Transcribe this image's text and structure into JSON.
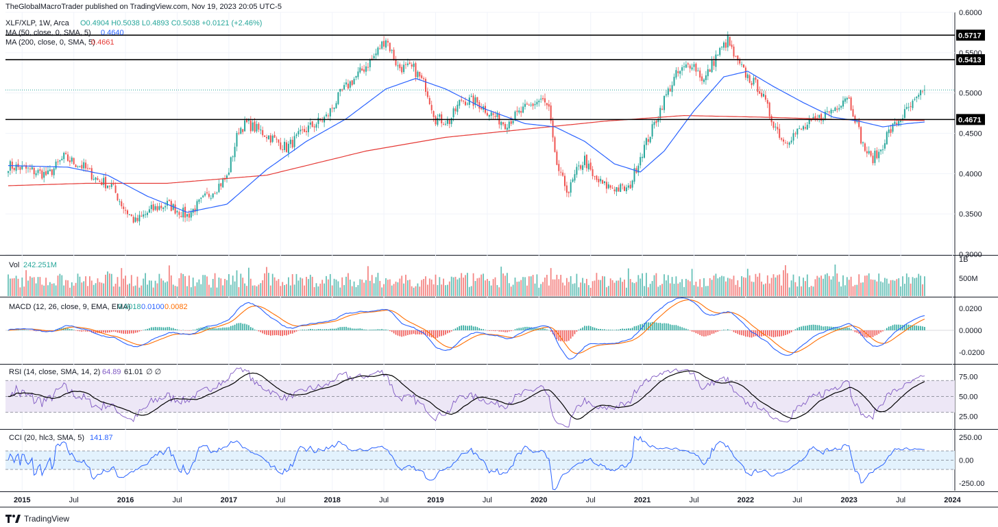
{
  "header": {
    "published": "TheGlobalMacroTrader published on TradingView.com, Nov 19, 2023 20:05 UTC-5"
  },
  "footer": {
    "brand": "TradingView",
    "logo": "tradingview-logo-icon"
  },
  "colors": {
    "up": "#26a69a",
    "down": "#ef5350",
    "ma50": "#2962ff",
    "ma200": "#e53935",
    "macd": "#2962ff",
    "signal": "#ff6d00",
    "rsi": "#7e57c2",
    "rsi_ma": "#000000",
    "cci": "#2962ff",
    "rsi_band": "#ede7f6",
    "cci_band": "#e3f2fd"
  },
  "chart_data": [
    {
      "id": "price",
      "type": "candlestick",
      "legend": {
        "symbol": "XLF/XLP, 1W, Arca",
        "ohlc": "O0.4904 H0.5038 L0.4893 C0.5038 +0.0121 (+2.46%)",
        "ma50_label": "MA (50, close, 0, SMA, 5)",
        "ma50_value": "0.4640",
        "ma200_label": "MA (200, close, 0, SMA, 5)",
        "ma200_value": "0.4661"
      },
      "ylim": [
        0.3,
        0.6
      ],
      "y_ticks": [
        "0.6000",
        "0.5500",
        "0.5000",
        "0.4500",
        "0.4000",
        "0.3500",
        "0.3000"
      ],
      "last_close": 0.5038,
      "horizontal_lines": [
        {
          "value": 0.5717,
          "label": "0.5717"
        },
        {
          "value": 0.5413,
          "label": "0.5413"
        },
        {
          "value": 0.4671,
          "label": "0.4671"
        }
      ],
      "anchors": [
        [
          0,
          0.41
        ],
        [
          10,
          0.405
        ],
        [
          20,
          0.398
        ],
        [
          28,
          0.42
        ],
        [
          38,
          0.408
        ],
        [
          45,
          0.392
        ],
        [
          52,
          0.385
        ],
        [
          58,
          0.358
        ],
        [
          64,
          0.34
        ],
        [
          72,
          0.355
        ],
        [
          80,
          0.362
        ],
        [
          90,
          0.348
        ],
        [
          100,
          0.372
        ],
        [
          110,
          0.395
        ],
        [
          116,
          0.455
        ],
        [
          120,
          0.462
        ],
        [
          130,
          0.448
        ],
        [
          140,
          0.432
        ],
        [
          150,
          0.455
        ],
        [
          160,
          0.47
        ],
        [
          168,
          0.502
        ],
        [
          178,
          0.528
        ],
        [
          184,
          0.545
        ],
        [
          190,
          0.568
        ],
        [
          196,
          0.532
        ],
        [
          204,
          0.53
        ],
        [
          210,
          0.508
        ],
        [
          215,
          0.468
        ],
        [
          222,
          0.465
        ],
        [
          228,
          0.492
        ],
        [
          236,
          0.488
        ],
        [
          244,
          0.472
        ],
        [
          250,
          0.462
        ],
        [
          260,
          0.48
        ],
        [
          268,
          0.492
        ],
        [
          272,
          0.48
        ],
        [
          275,
          0.42
        ],
        [
          278,
          0.395
        ],
        [
          282,
          0.378
        ],
        [
          286,
          0.402
        ],
        [
          290,
          0.418
        ],
        [
          294,
          0.395
        ],
        [
          300,
          0.385
        ],
        [
          306,
          0.382
        ],
        [
          312,
          0.38
        ],
        [
          318,
          0.422
        ],
        [
          324,
          0.455
        ],
        [
          330,
          0.492
        ],
        [
          336,
          0.522
        ],
        [
          344,
          0.538
        ],
        [
          350,
          0.515
        ],
        [
          356,
          0.545
        ],
        [
          362,
          0.565
        ],
        [
          366,
          0.54
        ],
        [
          372,
          0.52
        ],
        [
          378,
          0.505
        ],
        [
          384,
          0.468
        ],
        [
          390,
          0.44
        ],
        [
          396,
          0.45
        ],
        [
          404,
          0.462
        ],
        [
          410,
          0.472
        ],
        [
          416,
          0.482
        ],
        [
          422,
          0.498
        ],
        [
          426,
          0.47
        ],
        [
          430,
          0.435
        ],
        [
          434,
          0.418
        ],
        [
          438,
          0.425
        ],
        [
          442,
          0.448
        ],
        [
          450,
          0.472
        ],
        [
          456,
          0.488
        ],
        [
          461,
          0.503
        ]
      ],
      "ma50_anchors": [
        [
          0,
          0.41
        ],
        [
          30,
          0.408
        ],
        [
          50,
          0.398
        ],
        [
          70,
          0.372
        ],
        [
          90,
          0.352
        ],
        [
          110,
          0.362
        ],
        [
          130,
          0.405
        ],
        [
          150,
          0.44
        ],
        [
          170,
          0.468
        ],
        [
          190,
          0.505
        ],
        [
          205,
          0.518
        ],
        [
          220,
          0.505
        ],
        [
          240,
          0.48
        ],
        [
          260,
          0.462
        ],
        [
          275,
          0.458
        ],
        [
          290,
          0.44
        ],
        [
          305,
          0.412
        ],
        [
          318,
          0.402
        ],
        [
          330,
          0.428
        ],
        [
          345,
          0.478
        ],
        [
          360,
          0.52
        ],
        [
          372,
          0.527
        ],
        [
          385,
          0.508
        ],
        [
          400,
          0.488
        ],
        [
          415,
          0.47
        ],
        [
          428,
          0.465
        ],
        [
          440,
          0.458
        ],
        [
          452,
          0.462
        ],
        [
          461,
          0.464
        ]
      ],
      "ma200_anchors": [
        [
          0,
          0.385
        ],
        [
          40,
          0.388
        ],
        [
          80,
          0.388
        ],
        [
          130,
          0.398
        ],
        [
          180,
          0.428
        ],
        [
          220,
          0.445
        ],
        [
          260,
          0.455
        ],
        [
          300,
          0.465
        ],
        [
          340,
          0.472
        ],
        [
          380,
          0.47
        ],
        [
          420,
          0.467
        ],
        [
          461,
          0.466
        ]
      ]
    },
    {
      "id": "volume",
      "type": "bar",
      "legend": {
        "label": "Vol",
        "value": "242.251M"
      },
      "y_ticks": [
        "1B",
        "500M"
      ]
    },
    {
      "id": "macd",
      "type": "line+histogram",
      "legend": {
        "label": "MACD (12, 26, close, 9, EMA, EMA)",
        "hist": "0.0018",
        "macd": "0.0100",
        "signal": "0.0082"
      },
      "ylim": [
        -0.03,
        0.03
      ],
      "y_ticks": [
        "0.0200",
        "0.0000",
        "-0.0200"
      ]
    },
    {
      "id": "rsi",
      "type": "line",
      "legend": {
        "label": "RSI (14, close, SMA, 14, 2)",
        "rsi": "64.89",
        "ma": "61.01",
        "extra": "∅ ∅"
      },
      "ylim": [
        10,
        90
      ],
      "bands": [
        30,
        50,
        70
      ],
      "y_ticks": [
        "75.00",
        "50.00",
        "25.00"
      ]
    },
    {
      "id": "cci",
      "type": "line",
      "legend": {
        "label": "CCI (20, hlc3, SMA, 5)",
        "value": "141.87"
      },
      "ylim": [
        -330,
        330
      ],
      "bands": [
        -100,
        0,
        100
      ],
      "y_ticks": [
        "250.00",
        "0.00",
        "-250.00"
      ]
    },
    {
      "id": "time_axis",
      "type": "axis",
      "x_ticks": [
        {
          "label": "2015",
          "week": 7,
          "bold": true
        },
        {
          "label": "Jul",
          "week": 33,
          "bold": false
        },
        {
          "label": "2016",
          "week": 59,
          "bold": true
        },
        {
          "label": "Jul",
          "week": 85,
          "bold": false
        },
        {
          "label": "2017",
          "week": 111,
          "bold": true
        },
        {
          "label": "Jul",
          "week": 137,
          "bold": false
        },
        {
          "label": "2018",
          "week": 163,
          "bold": true
        },
        {
          "label": "Jul",
          "week": 189,
          "bold": false
        },
        {
          "label": "2019",
          "week": 215,
          "bold": true
        },
        {
          "label": "Jul",
          "week": 241,
          "bold": false
        },
        {
          "label": "2020",
          "week": 267,
          "bold": true
        },
        {
          "label": "Jul",
          "week": 293,
          "bold": false
        },
        {
          "label": "2021",
          "week": 319,
          "bold": true
        },
        {
          "label": "Jul",
          "week": 345,
          "bold": false
        },
        {
          "label": "2022",
          "week": 371,
          "bold": true
        },
        {
          "label": "Jul",
          "week": 397,
          "bold": false
        },
        {
          "label": "2023",
          "week": 423,
          "bold": true
        },
        {
          "label": "Jul",
          "week": 449,
          "bold": false
        },
        {
          "label": "2024",
          "week": 475,
          "bold": true
        }
      ]
    }
  ]
}
